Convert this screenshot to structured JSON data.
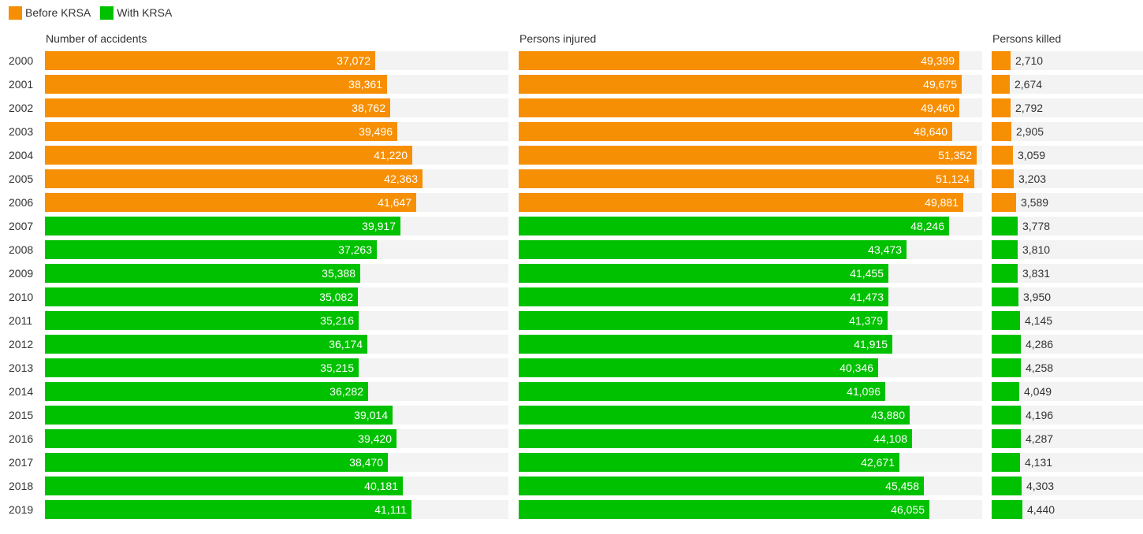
{
  "legend": [
    {
      "label": "Before KRSA",
      "color": "#f78f04"
    },
    {
      "label": "With KRSA",
      "color": "#00c100"
    }
  ],
  "chart_data": {
    "type": "bar",
    "orientation": "horizontal",
    "categories": [
      "2000",
      "2001",
      "2002",
      "2003",
      "2004",
      "2005",
      "2006",
      "2007",
      "2008",
      "2009",
      "2010",
      "2011",
      "2012",
      "2013",
      "2014",
      "2015",
      "2016",
      "2017",
      "2018",
      "2019"
    ],
    "category_group": [
      "Before KRSA",
      "Before KRSA",
      "Before KRSA",
      "Before KRSA",
      "Before KRSA",
      "Before KRSA",
      "Before KRSA",
      "With KRSA",
      "With KRSA",
      "With KRSA",
      "With KRSA",
      "With KRSA",
      "With KRSA",
      "With KRSA",
      "With KRSA",
      "With KRSA",
      "With KRSA",
      "With KRSA",
      "With KRSA",
      "With KRSA"
    ],
    "series": [
      {
        "name": "Number of accidents",
        "xlim": [
          0,
          52000
        ],
        "values": [
          37072,
          38361,
          38762,
          39496,
          41220,
          42363,
          41647,
          39917,
          37263,
          35388,
          35082,
          35216,
          36174,
          35215,
          36282,
          39014,
          39420,
          38470,
          40181,
          41111
        ]
      },
      {
        "name": "Persons injured",
        "xlim": [
          0,
          52000
        ],
        "values": [
          49399,
          49675,
          49460,
          48640,
          51352,
          51124,
          49881,
          48246,
          43473,
          41455,
          41473,
          41379,
          41915,
          40346,
          41096,
          43880,
          44108,
          42671,
          45458,
          46055
        ]
      },
      {
        "name": "Persons killed",
        "xlim": [
          0,
          22000
        ],
        "values": [
          2710,
          2674,
          2792,
          2905,
          3059,
          3203,
          3589,
          3778,
          3810,
          3831,
          3950,
          4145,
          4286,
          4258,
          4049,
          4196,
          4287,
          4131,
          4303,
          4440
        ]
      }
    ],
    "legend_position": "top-left",
    "grid": false
  }
}
